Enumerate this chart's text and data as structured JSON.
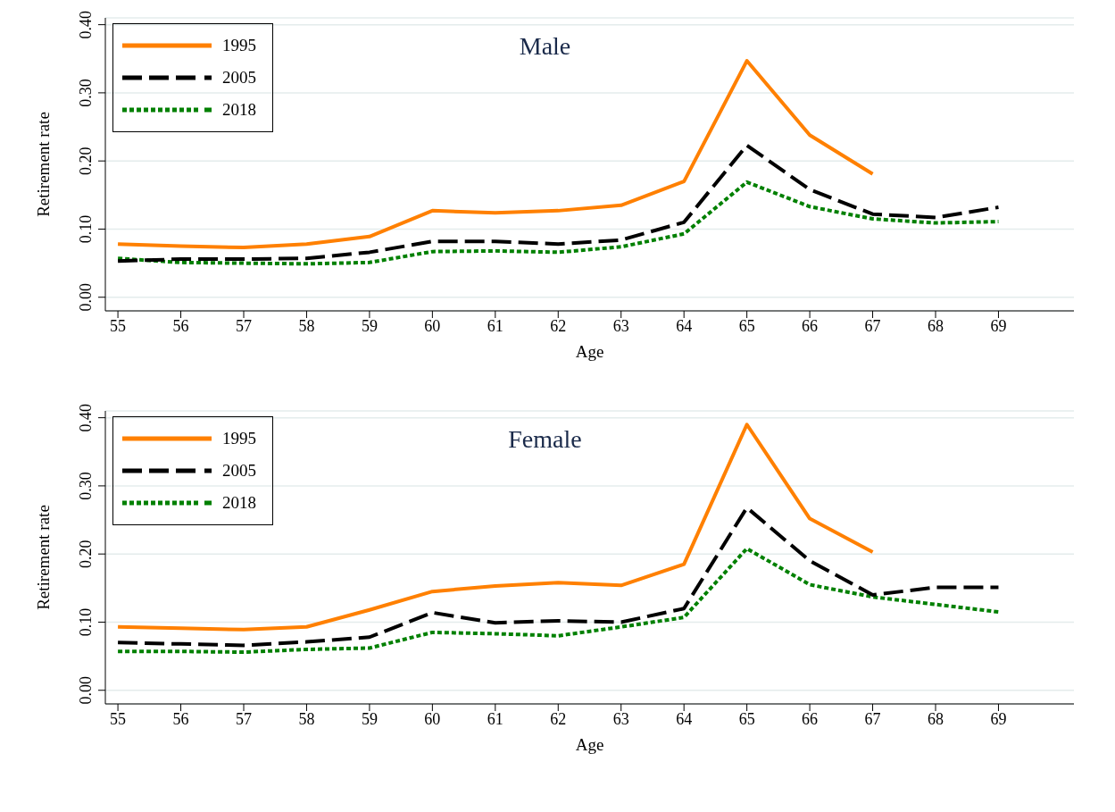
{
  "chart_data": [
    {
      "type": "line",
      "title": "Male",
      "xlabel": "Age",
      "ylabel": "Retirement rate",
      "x": [
        55,
        56,
        57,
        58,
        59,
        60,
        61,
        62,
        63,
        64,
        65,
        66,
        67,
        68,
        69
      ],
      "series": [
        {
          "name": "1995",
          "color": "#ff8000",
          "line_style": "solid",
          "values": [
            0.078,
            0.075,
            0.073,
            0.078,
            0.089,
            0.127,
            0.124,
            0.127,
            0.135,
            0.17,
            0.347,
            0.238,
            0.181,
            null,
            null
          ]
        },
        {
          "name": "2005",
          "color": "#000000",
          "line_style": "dashed",
          "values": [
            0.053,
            0.056,
            0.056,
            0.057,
            0.066,
            0.082,
            0.082,
            0.078,
            0.084,
            0.11,
            0.223,
            0.158,
            0.122,
            0.117,
            0.132
          ]
        },
        {
          "name": "2018",
          "color": "#008000",
          "line_style": "dotted",
          "values": [
            0.057,
            0.051,
            0.05,
            0.049,
            0.051,
            0.067,
            0.068,
            0.066,
            0.074,
            0.093,
            0.169,
            0.133,
            0.115,
            0.109,
            0.111
          ]
        }
      ],
      "xlim": [
        54.8,
        70.2
      ],
      "xticks": [
        55,
        56,
        57,
        58,
        59,
        60,
        61,
        62,
        63,
        64,
        65,
        66,
        67,
        68,
        69
      ],
      "ylim": [
        -0.02,
        0.41
      ],
      "yticks": [
        {
          "value": 0,
          "label": "0.00"
        },
        {
          "value": 0.1,
          "label": "0.10"
        },
        {
          "value": 0.2,
          "label": "0.20"
        },
        {
          "value": 0.3,
          "label": "0.30"
        },
        {
          "value": 0.4,
          "label": "0.40"
        }
      ],
      "grid": "y",
      "legend": "top left",
      "marker": "none"
    },
    {
      "type": "line",
      "title": "Female",
      "xlabel": "Age",
      "ylabel": "Retirement rate",
      "x": [
        55,
        56,
        57,
        58,
        59,
        60,
        61,
        62,
        63,
        64,
        65,
        66,
        67,
        68,
        69
      ],
      "series": [
        {
          "name": "1995",
          "color": "#ff8000",
          "line_style": "solid",
          "values": [
            0.093,
            0.091,
            0.089,
            0.093,
            0.118,
            0.145,
            0.153,
            0.158,
            0.154,
            0.185,
            0.39,
            0.252,
            0.203,
            null,
            null
          ]
        },
        {
          "name": "2005",
          "color": "#000000",
          "line_style": "dashed",
          "values": [
            0.07,
            0.068,
            0.066,
            0.071,
            0.078,
            0.114,
            0.099,
            0.102,
            0.1,
            0.12,
            0.268,
            0.19,
            0.14,
            0.151,
            0.151
          ]
        },
        {
          "name": "2018",
          "color": "#008000",
          "line_style": "dotted",
          "values": [
            0.057,
            0.057,
            0.056,
            0.06,
            0.062,
            0.085,
            0.083,
            0.08,
            0.093,
            0.107,
            0.208,
            0.155,
            0.137,
            0.126,
            0.115
          ]
        }
      ],
      "xlim": [
        54.8,
        70.2
      ],
      "xticks": [
        55,
        56,
        57,
        58,
        59,
        60,
        61,
        62,
        63,
        64,
        65,
        66,
        67,
        68,
        69
      ],
      "ylim": [
        -0.02,
        0.41
      ],
      "yticks": [
        {
          "value": 0,
          "label": "0.00"
        },
        {
          "value": 0.1,
          "label": "0.10"
        },
        {
          "value": 0.2,
          "label": "0.20"
        },
        {
          "value": 0.3,
          "label": "0.30"
        },
        {
          "value": 0.4,
          "label": "0.40"
        }
      ],
      "grid": "y",
      "legend": "top left",
      "marker": "none"
    }
  ]
}
